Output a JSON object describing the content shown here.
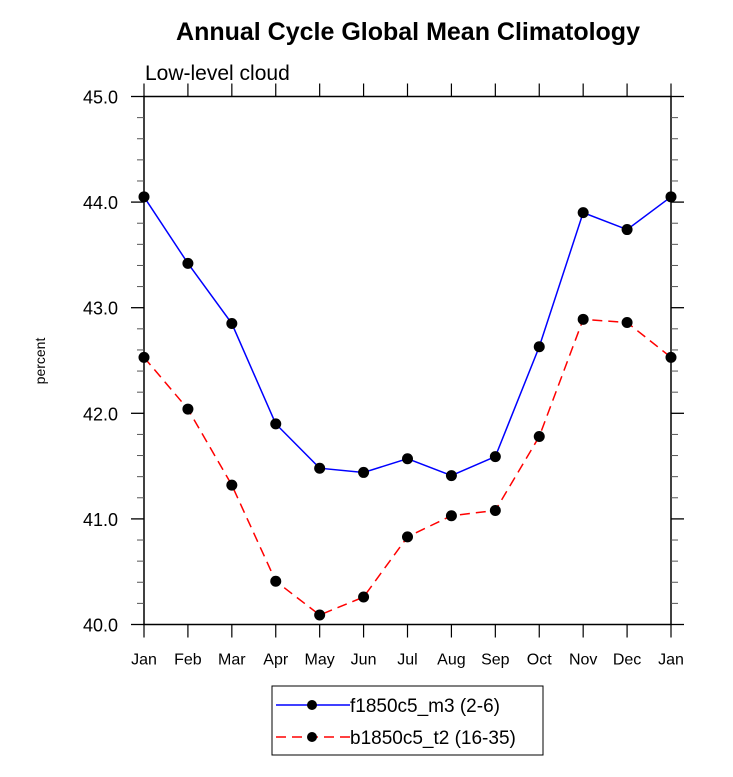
{
  "chart_data": {
    "type": "line",
    "title": "Annual Cycle Global Mean Climatology",
    "subtitle": "Low-level cloud",
    "xlabel": "",
    "ylabel": "percent",
    "categories": [
      "Jan",
      "Feb",
      "Mar",
      "Apr",
      "May",
      "Jun",
      "Jul",
      "Aug",
      "Sep",
      "Oct",
      "Nov",
      "Dec",
      "Jan"
    ],
    "ylim": [
      40.0,
      45.0
    ],
    "yticks": [
      "40.0",
      "41.0",
      "42.0",
      "43.0",
      "44.0",
      "45.0"
    ],
    "yminor_step": 0.2,
    "grid": false,
    "legend_position": "bottom-center",
    "series": [
      {
        "name": "f1850c5_m3 (2-6)",
        "color": "#0000ff",
        "line_style": "solid",
        "marker": "filled-circle",
        "marker_color": "#000000",
        "values": [
          44.05,
          43.42,
          42.85,
          41.9,
          41.48,
          41.44,
          41.57,
          41.41,
          41.59,
          42.63,
          43.9,
          43.74,
          44.05
        ]
      },
      {
        "name": "b1850c5_t2 (16-35)",
        "color": "#ff0000",
        "line_style": "dashed",
        "marker": "filled-circle",
        "marker_color": "#000000",
        "values": [
          42.53,
          42.04,
          41.32,
          40.41,
          40.09,
          40.26,
          40.83,
          41.03,
          41.08,
          41.78,
          42.89,
          42.86,
          42.53
        ]
      }
    ]
  }
}
